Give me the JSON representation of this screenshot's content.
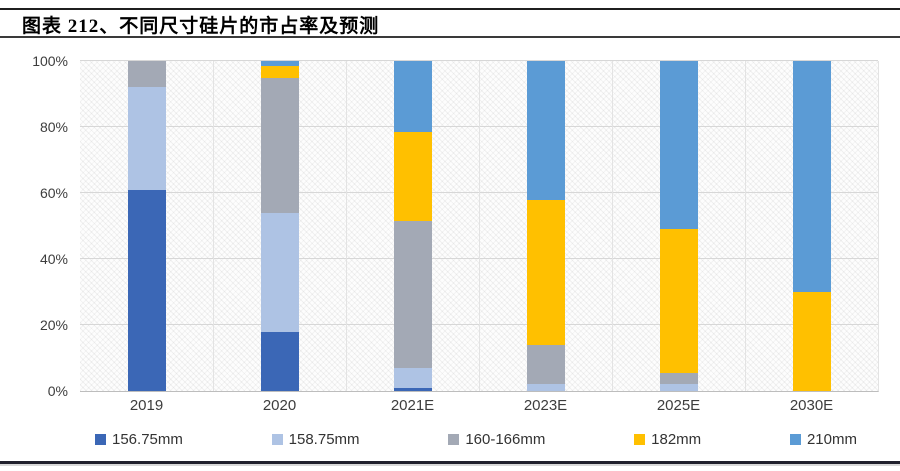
{
  "chart_data": {
    "type": "bar",
    "subtype": "stacked-percent-column",
    "title": "图表 212、不同尺寸硅片的市占率及预测",
    "categories": [
      "2019",
      "2020",
      "2021E",
      "2023E",
      "2025E",
      "2030E"
    ],
    "series": [
      {
        "name": "156.75mm",
        "color": "#3B67B6",
        "values": [
          61,
          18,
          1,
          0,
          0,
          0
        ]
      },
      {
        "name": "158.75mm",
        "color": "#AEC3E4",
        "values": [
          31,
          36,
          6,
          2,
          2,
          0
        ]
      },
      {
        "name": "160-166mm",
        "color": "#A3A9B5",
        "values": [
          8,
          41,
          44.5,
          12,
          3.5,
          0
        ]
      },
      {
        "name": "182mm",
        "color": "#FFC000",
        "values": [
          0,
          3.5,
          27,
          44,
          43.5,
          30
        ]
      },
      {
        "name": "210mm",
        "color": "#5B9BD5",
        "values": [
          0,
          1.5,
          21.5,
          42,
          51,
          70
        ]
      }
    ],
    "yticks": [
      0,
      20,
      40,
      60,
      80,
      100
    ],
    "ytick_labels": [
      "0%",
      "20%",
      "40%",
      "60%",
      "80%",
      "100%"
    ],
    "ylim": [
      0,
      100
    ],
    "grid": true,
    "legend_position": "bottom",
    "plot_background": "diagonal-crosshatch"
  },
  "colors": {
    "top_rule": "#1F1F1F",
    "title_rule": "#3A3A3A",
    "bottom_rule": "#20202C",
    "gridline": "#D7D7D7",
    "axis_text": "#3D3D3D"
  }
}
